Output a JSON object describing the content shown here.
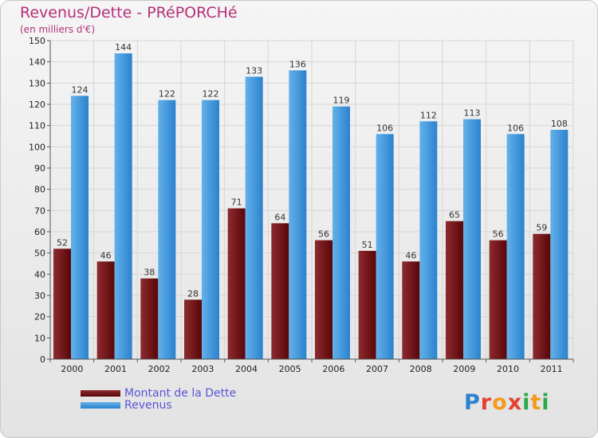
{
  "colors": {
    "debt_light": "#8c2b2f",
    "debt_dark": "#5a0608",
    "revenue_light": "#63b1ea",
    "revenue_dark": "#2b82cd",
    "title": "#b5307a",
    "legend_text": "#5a55d6"
  },
  "chart_data": {
    "type": "bar",
    "title": "Revenus/Dette - PRéPORCHé",
    "subtitle": "(en milliers d'€)",
    "xlabel": "",
    "ylabel": "",
    "categories": [
      "2000",
      "2001",
      "2002",
      "2003",
      "2004",
      "2005",
      "2006",
      "2007",
      "2008",
      "2009",
      "2010",
      "2011"
    ],
    "series": [
      {
        "name": "Montant de la Dette",
        "values": [
          52,
          46,
          38,
          28,
          71,
          64,
          56,
          51,
          46,
          65,
          56,
          59
        ]
      },
      {
        "name": "Revenus",
        "values": [
          124,
          144,
          122,
          122,
          133,
          136,
          119,
          106,
          112,
          113,
          106,
          108
        ]
      }
    ],
    "ylim": [
      0,
      150
    ],
    "yticks": [
      0,
      10,
      20,
      30,
      40,
      50,
      60,
      70,
      80,
      90,
      100,
      110,
      120,
      130,
      140,
      150
    ],
    "grid": true,
    "legend_position": "bottom-left"
  },
  "legend": {
    "debt_label": "Montant de la Dette",
    "revenue_label": "Revenus"
  },
  "logo": {
    "letters": [
      "P",
      "r",
      "o",
      "x",
      "i",
      "t",
      "i"
    ],
    "colors": [
      "#2b82cd",
      "#e3402f",
      "#f29b1d",
      "#e3402f",
      "#2aa84a",
      "#f29b1d",
      "#2aa84a"
    ]
  }
}
